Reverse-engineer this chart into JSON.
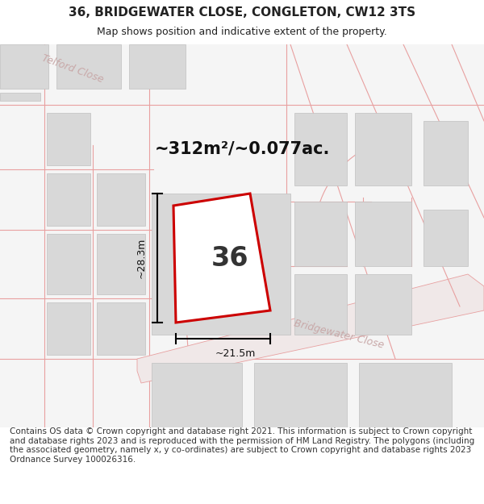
{
  "title": "36, BRIDGEWATER CLOSE, CONGLETON, CW12 3TS",
  "subtitle": "Map shows position and indicative extent of the property.",
  "area_label": "~312m²/~0.077ac.",
  "plot_number": "36",
  "dim_height": "~28.3m",
  "dim_width": "~21.5m",
  "footer": "Contains OS data © Crown copyright and database right 2021. This information is subject to Crown copyright and database rights 2023 and is reproduced with the permission of HM Land Registry. The polygons (including the associated geometry, namely x, y co-ordinates) are subject to Crown copyright and database rights 2023 Ordnance Survey 100026316.",
  "bg_color": "#f2f2f2",
  "road_line_color": "#e8a0a0",
  "building_color": "#d8d8d8",
  "plot_outline_color": "#cc0000",
  "text_color": "#222222",
  "road_text_color": "#c0a0a0",
  "street_name": "Bridgewater Close",
  "street_name2": "Telford Close",
  "title_fontsize": 11,
  "subtitle_fontsize": 9,
  "footer_fontsize": 7.5
}
